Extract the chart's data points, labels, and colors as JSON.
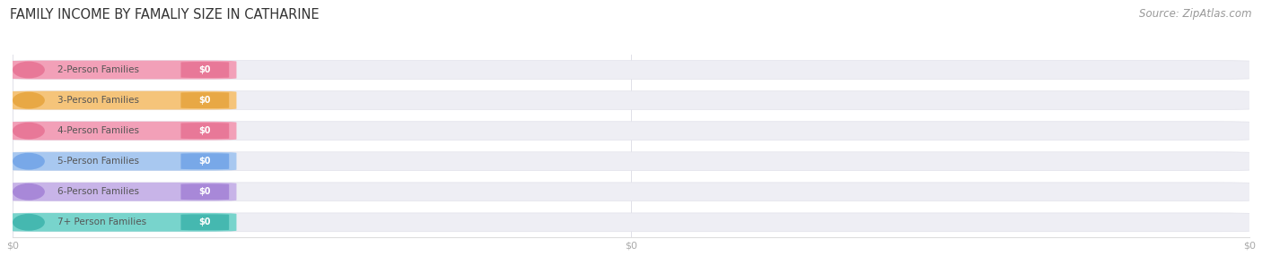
{
  "title": "FAMILY INCOME BY FAMALIY SIZE IN CATHARINE",
  "source": "Source: ZipAtlas.com",
  "categories": [
    "2-Person Families",
    "3-Person Families",
    "4-Person Families",
    "5-Person Families",
    "6-Person Families",
    "7+ Person Families"
  ],
  "values": [
    0,
    0,
    0,
    0,
    0,
    0
  ],
  "value_labels": [
    "$0",
    "$0",
    "$0",
    "$0",
    "$0",
    "$0"
  ],
  "bar_colors": [
    "#f2a0b8",
    "#f5c47a",
    "#f2a0b8",
    "#a8c8f0",
    "#c8b4e8",
    "#78d4cc"
  ],
  "circle_colors": [
    "#e87898",
    "#e8a845",
    "#e87898",
    "#78a8e8",
    "#a888d8",
    "#45b8b0"
  ],
  "bar_track_color": "#eeeeF4",
  "bar_track_border": "#e2e2ea",
  "fig_bg_color": "#ffffff",
  "title_color": "#333333",
  "source_color": "#999999",
  "label_color": "#555555",
  "value_label_color": "#ffffff",
  "tick_label_color": "#aaaaaa",
  "title_fontsize": 10.5,
  "source_fontsize": 8.5,
  "bar_label_fontsize": 7.5,
  "tick_fontsize": 8.0,
  "xticks": [
    0,
    0.5,
    1.0
  ],
  "xtick_labels": [
    "$0",
    "$0",
    "$0"
  ]
}
